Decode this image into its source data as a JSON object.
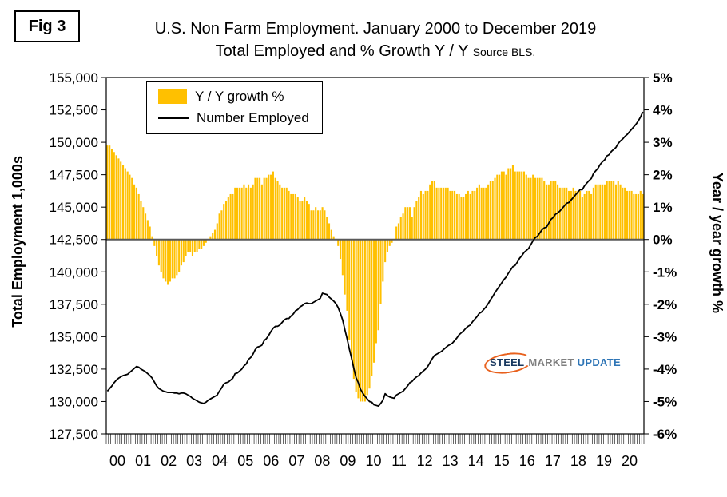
{
  "fig_label": "Fig 3",
  "title_line1": "U.S. Non Farm Employment. January 2000 to December 2019",
  "title_line2": "Total Employed and % Growth Y / Y",
  "title_source": "Source BLS.",
  "left_axis_title": "Total Employment 1,000s",
  "right_axis_title": "Year / year growth %",
  "legend": {
    "bar_label": "Y / Y growth %",
    "line_label": "Number Employed"
  },
  "logo": {
    "word1": "STEEL",
    "word2": "MARKET",
    "word3": "UPDATE"
  },
  "colors": {
    "bar": "#FFC000",
    "line": "#000000",
    "zero_line": "#595959",
    "plot_border": "#000000",
    "logo_steel": "#17375E",
    "logo_market": "#7F7F7F",
    "logo_update": "#2E75B6",
    "logo_swoosh": "#E8601C"
  },
  "chart_data": {
    "type": "combo_bar_line",
    "title": "U.S. Non Farm Employment. January 2000 to December 2019",
    "subtitle": "Total Employed and % Growth Y / Y Source BLS.",
    "x_start": "2000-01",
    "x_end": "2019-12",
    "grid": false,
    "legend_position": "top-left-inside",
    "left_axis": {
      "label": "Total Employment 1,000s",
      "min": 127500,
      "max": 155000,
      "step": 2500,
      "tick_labels": [
        "155,000",
        "152,500",
        "150,000",
        "147,500",
        "145,000",
        "142,500",
        "140,000",
        "137,500",
        "135,000",
        "132,500",
        "130,000",
        "127,500"
      ]
    },
    "right_axis": {
      "label": "Year / year growth %",
      "min": -6,
      "max": 5,
      "step": 1,
      "tick_labels": [
        "5%",
        "4%",
        "3%",
        "2%",
        "1%",
        "0%",
        "-1%",
        "-2%",
        "-3%",
        "-4%",
        "-5%",
        "-6%"
      ]
    },
    "x_axis": {
      "year_labels": [
        "00",
        "01",
        "02",
        "03",
        "04",
        "05",
        "06",
        "07",
        "08",
        "09",
        "10",
        "11",
        "12",
        "13",
        "14",
        "15",
        "16",
        "17",
        "18",
        "19",
        "20"
      ]
    },
    "series": [
      {
        "name": "Y / Y growth %",
        "type": "bar",
        "axis": "right",
        "color": "#FFC000",
        "values": [
          2.9,
          2.9,
          2.8,
          2.7,
          2.6,
          2.5,
          2.4,
          2.3,
          2.2,
          2.1,
          2.0,
          1.9,
          1.7,
          1.6,
          1.4,
          1.2,
          1.0,
          0.8,
          0.6,
          0.4,
          0.1,
          -0.2,
          -0.5,
          -0.8,
          -1.0,
          -1.2,
          -1.3,
          -1.4,
          -1.3,
          -1.2,
          -1.2,
          -1.1,
          -1.0,
          -0.8,
          -0.7,
          -0.5,
          -0.4,
          -0.4,
          -0.5,
          -0.4,
          -0.4,
          -0.3,
          -0.3,
          -0.2,
          -0.1,
          0.0,
          0.1,
          0.2,
          0.3,
          0.5,
          0.8,
          0.9,
          1.1,
          1.2,
          1.3,
          1.4,
          1.4,
          1.6,
          1.6,
          1.6,
          1.6,
          1.7,
          1.6,
          1.7,
          1.6,
          1.7,
          1.9,
          1.9,
          1.9,
          1.7,
          1.9,
          1.9,
          2.0,
          2.0,
          2.1,
          1.9,
          1.8,
          1.7,
          1.6,
          1.6,
          1.6,
          1.5,
          1.4,
          1.4,
          1.4,
          1.3,
          1.2,
          1.2,
          1.3,
          1.2,
          1.1,
          0.9,
          0.9,
          1.0,
          0.9,
          0.9,
          1.0,
          0.9,
          0.7,
          0.5,
          0.3,
          0.1,
          0.0,
          -0.2,
          -0.6,
          -1.1,
          -1.7,
          -2.2,
          -3.1,
          -3.7,
          -4.3,
          -4.7,
          -4.9,
          -5.0,
          -5.0,
          -5.0,
          -4.8,
          -4.6,
          -4.2,
          -3.8,
          -3.2,
          -2.8,
          -2.0,
          -1.3,
          -0.7,
          -0.4,
          -0.2,
          -0.1,
          0.0,
          0.4,
          0.5,
          0.7,
          0.8,
          1.0,
          1.0,
          1.0,
          0.7,
          1.0,
          1.2,
          1.3,
          1.5,
          1.4,
          1.5,
          1.5,
          1.7,
          1.8,
          1.8,
          1.6,
          1.6,
          1.6,
          1.6,
          1.6,
          1.6,
          1.5,
          1.5,
          1.5,
          1.4,
          1.4,
          1.3,
          1.3,
          1.4,
          1.5,
          1.4,
          1.5,
          1.5,
          1.6,
          1.7,
          1.6,
          1.6,
          1.6,
          1.7,
          1.8,
          1.8,
          1.9,
          2.0,
          2.0,
          2.1,
          2.1,
          2.0,
          2.2,
          2.2,
          2.3,
          2.1,
          2.1,
          2.1,
          2.1,
          2.1,
          2.0,
          1.9,
          1.9,
          2.0,
          1.9,
          1.9,
          1.9,
          1.9,
          1.8,
          1.7,
          1.7,
          1.8,
          1.8,
          1.8,
          1.7,
          1.6,
          1.6,
          1.6,
          1.6,
          1.5,
          1.5,
          1.6,
          1.5,
          1.5,
          1.5,
          1.3,
          1.4,
          1.5,
          1.5,
          1.4,
          1.6,
          1.7,
          1.7,
          1.7,
          1.7,
          1.7,
          1.8,
          1.8,
          1.8,
          1.8,
          1.7,
          1.8,
          1.7,
          1.6,
          1.6,
          1.5,
          1.5,
          1.5,
          1.4,
          1.4,
          1.4,
          1.5,
          1.4
        ]
      },
      {
        "name": "Number Employed",
        "type": "line",
        "axis": "left",
        "color": "#000000",
        "values": [
          130800,
          131000,
          131200,
          131450,
          131650,
          131800,
          131900,
          132000,
          132050,
          132100,
          132250,
          132400,
          132550,
          132700,
          132650,
          132500,
          132400,
          132300,
          132150,
          132000,
          131800,
          131500,
          131200,
          131000,
          130900,
          130800,
          130750,
          130700,
          130700,
          130700,
          130650,
          130650,
          130600,
          130650,
          130650,
          130600,
          130500,
          130400,
          130250,
          130150,
          130050,
          129950,
          129900,
          129850,
          129950,
          130100,
          130200,
          130300,
          130400,
          130500,
          130800,
          131050,
          131350,
          131450,
          131500,
          131650,
          131800,
          132150,
          132200,
          132350,
          132500,
          132750,
          132900,
          133250,
          133400,
          133650,
          134000,
          134200,
          134250,
          134350,
          134700,
          134850,
          135100,
          135400,
          135650,
          135800,
          135800,
          135900,
          136100,
          136300,
          136400,
          136400,
          136600,
          136750,
          137000,
          137100,
          137300,
          137400,
          137550,
          137600,
          137550,
          137550,
          137650,
          137750,
          137850,
          137950,
          138350,
          138300,
          138250,
          138050,
          137900,
          137750,
          137550,
          137250,
          136800,
          136300,
          135550,
          134850,
          134050,
          133350,
          132550,
          131850,
          131450,
          130950,
          130650,
          130400,
          130200,
          130000,
          129950,
          129750,
          129700,
          129650,
          129850,
          130100,
          130600,
          130450,
          130350,
          130300,
          130250,
          130500,
          130600,
          130700,
          130800,
          131000,
          131200,
          131450,
          131550,
          131750,
          131900,
          132000,
          132200,
          132350,
          132500,
          132700,
          133000,
          133300,
          133550,
          133650,
          133750,
          133850,
          134000,
          134150,
          134300,
          134400,
          134500,
          134700,
          134900,
          135150,
          135300,
          135450,
          135650,
          135800,
          135900,
          136150,
          136350,
          136550,
          136800,
          136900,
          137100,
          137300,
          137550,
          137850,
          138100,
          138400,
          138650,
          138900,
          139150,
          139400,
          139600,
          139900,
          140150,
          140400,
          140500,
          140750,
          141050,
          141250,
          141500,
          141650,
          141800,
          142100,
          142400,
          142650,
          142750,
          143000,
          143250,
          143400,
          143450,
          143750,
          144050,
          144200,
          144450,
          144550,
          144700,
          144900,
          145100,
          145300,
          145350,
          145550,
          145750,
          145950,
          146150,
          146350,
          146350,
          146650,
          146850,
          147050,
          147200,
          147600,
          147800,
          148000,
          148300,
          148500,
          148650,
          148950,
          149050,
          149300,
          149450,
          149600,
          149900,
          150100,
          150250,
          150450,
          150600,
          150800,
          151000,
          151200,
          151400,
          151650,
          151950,
          152350
        ]
      }
    ]
  }
}
